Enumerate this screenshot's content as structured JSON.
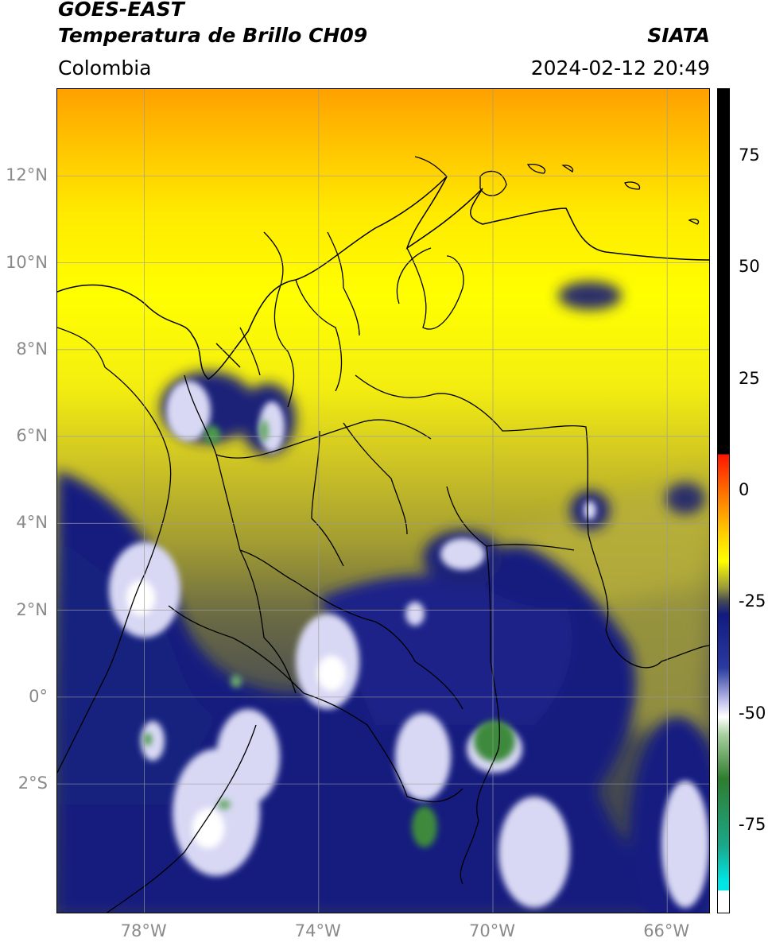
{
  "header": {
    "line1": "GOES-EAST",
    "line2": "Temperatura de Brillo CH09",
    "region": "Colombia",
    "agency": "SIATA",
    "datetime": "2024-02-12 20:49"
  },
  "map": {
    "lat_ticks": [
      {
        "value": 12,
        "label": "12°N"
      },
      {
        "value": 10,
        "label": "10°N"
      },
      {
        "value": 8,
        "label": "8°N"
      },
      {
        "value": 6,
        "label": "6°N"
      },
      {
        "value": 4,
        "label": "4°N"
      },
      {
        "value": 2,
        "label": "2°N"
      },
      {
        "value": 0,
        "label": "0°"
      },
      {
        "value": -2,
        "label": "2°S"
      }
    ],
    "lon_ticks": [
      {
        "value": -78,
        "label": "78°W"
      },
      {
        "value": -74,
        "label": "74°W"
      },
      {
        "value": -70,
        "label": "70°W"
      },
      {
        "value": -66,
        "label": "66°W"
      }
    ],
    "extent": {
      "lon_min": -80,
      "lon_max": -65,
      "lat_min": -5,
      "lat_max": 14
    },
    "grid_color": "#9a9a9a"
  },
  "colorbar": {
    "range": [
      -95,
      90
    ],
    "ticks": [
      {
        "value": 75,
        "label": "75"
      },
      {
        "value": 50,
        "label": "50"
      },
      {
        "value": 25,
        "label": "25"
      },
      {
        "value": 0,
        "label": "0"
      },
      {
        "value": -25,
        "label": "-25"
      },
      {
        "value": -50,
        "label": "-50"
      },
      {
        "value": -75,
        "label": "-75"
      }
    ],
    "stops": [
      {
        "value": 90,
        "color": "#000000"
      },
      {
        "value": 8,
        "color": "#000000"
      },
      {
        "value": 7.9,
        "color": "#ff1500"
      },
      {
        "value": 0,
        "color": "#ff6a00"
      },
      {
        "value": -10,
        "color": "#ffd000"
      },
      {
        "value": -16,
        "color": "#ffff00"
      },
      {
        "value": -22,
        "color": "#9a9a3a"
      },
      {
        "value": -25,
        "color": "#454a55"
      },
      {
        "value": -28,
        "color": "#121a80"
      },
      {
        "value": -40,
        "color": "#2a3aa0"
      },
      {
        "value": -48,
        "color": "#c8c8ee"
      },
      {
        "value": -51,
        "color": "#ffffff"
      },
      {
        "value": -55,
        "color": "#a8d0a0"
      },
      {
        "value": -65,
        "color": "#2e7d2e"
      },
      {
        "value": -80,
        "color": "#1aa88a"
      },
      {
        "value": -88,
        "color": "#00e5e5"
      },
      {
        "value": -90,
        "color": "#00e5e5"
      },
      {
        "value": -90.1,
        "color": "#ffffff"
      },
      {
        "value": -95,
        "color": "#ffffff"
      }
    ]
  }
}
